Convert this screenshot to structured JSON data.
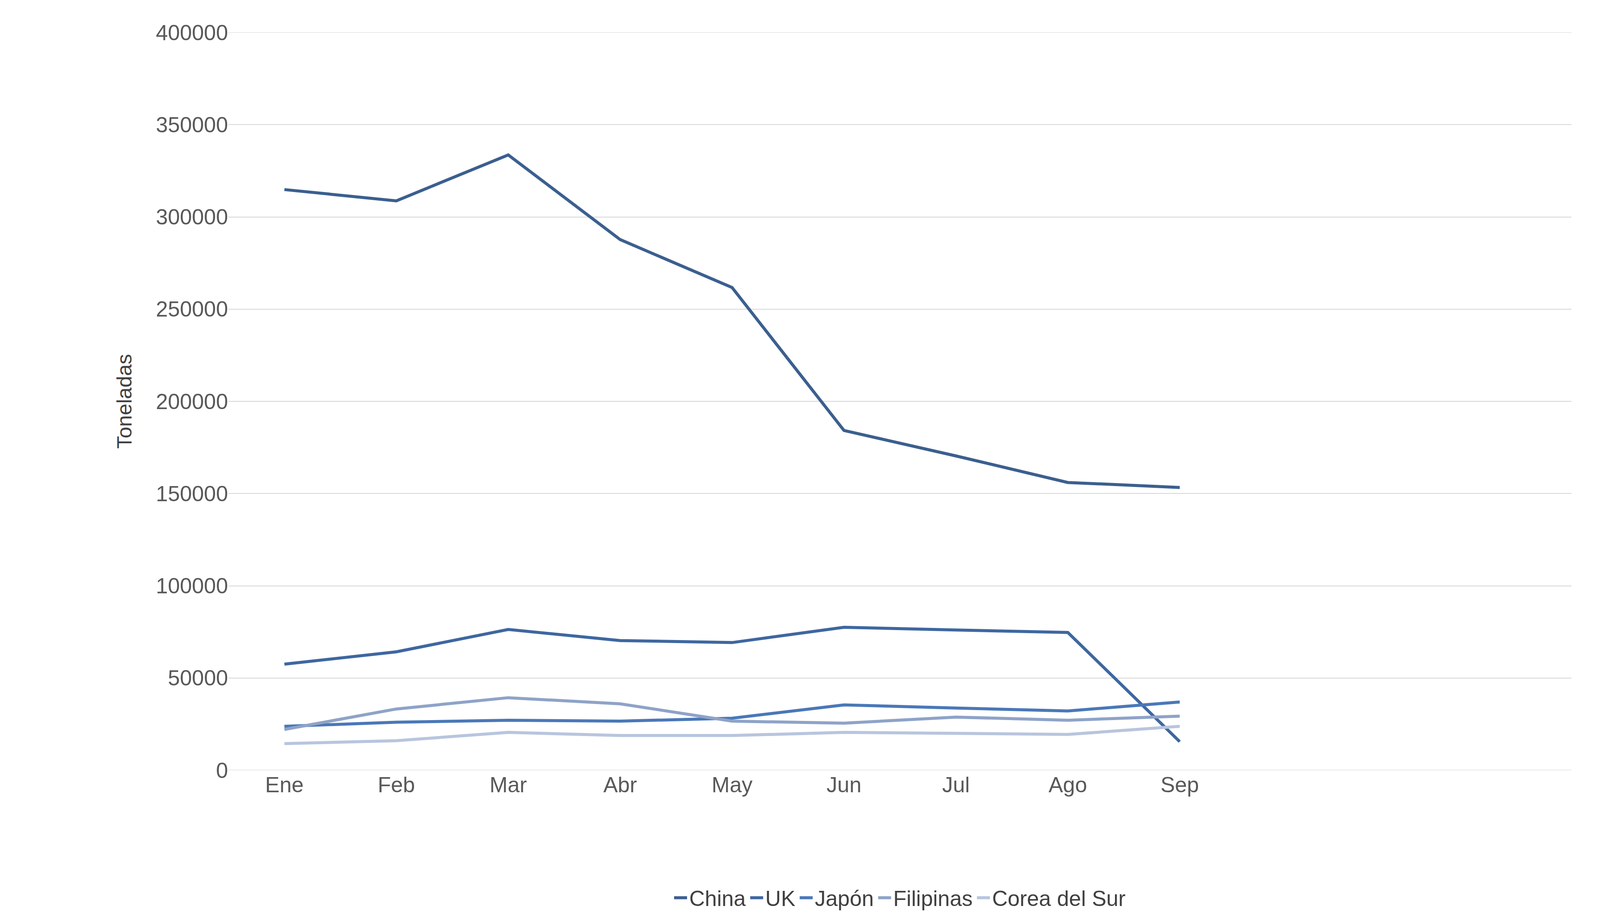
{
  "chart_data": {
    "type": "line",
    "y_label": "Toneladas",
    "categories": [
      "Ene",
      "Feb",
      "Mar",
      "Abr",
      "May",
      "Jun",
      "Jul",
      "Ago",
      "Sep",
      null,
      null,
      null
    ],
    "series": [
      {
        "name": "China",
        "color": "#3b5f8f",
        "values": [
          314800,
          308700,
          333600,
          287700,
          261700,
          184200,
          170400,
          156000,
          153300,
          null,
          null,
          null
        ]
      },
      {
        "name": "UK",
        "color": "#3e67a0",
        "values": [
          57500,
          64200,
          76300,
          70300,
          69200,
          77500,
          76000,
          74700,
          15500,
          null,
          null,
          null
        ]
      },
      {
        "name": "Japón",
        "color": "#4a78b8",
        "values": [
          23800,
          26000,
          27100,
          26600,
          28200,
          35400,
          33700,
          32100,
          37000,
          null,
          null,
          null
        ]
      },
      {
        "name": "Filipinas",
        "color": "#8ea3c8",
        "values": [
          22100,
          33200,
          39300,
          36000,
          26600,
          25500,
          28800,
          27100,
          29300,
          null,
          null,
          null
        ]
      },
      {
        "name": "Corea del Sur",
        "color": "#b8c5de",
        "values": [
          14400,
          16000,
          20500,
          18800,
          18800,
          20500,
          20000,
          19400,
          23800,
          null,
          null,
          null
        ]
      }
    ],
    "ylim": [
      0,
      400000
    ],
    "yticks": [
      0,
      50000,
      100000,
      150000,
      200000,
      250000,
      300000,
      350000,
      400000
    ],
    "grid": true,
    "legend": "bottom"
  }
}
